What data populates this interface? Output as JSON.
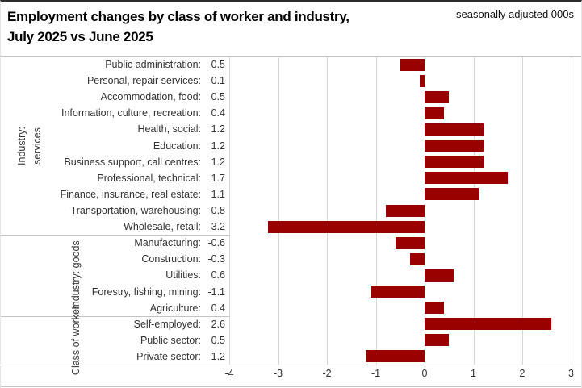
{
  "header": {
    "title_line1": "Employment changes by class of worker and industry,",
    "title_line2": "July 2025 vs June 2025",
    "units_note": "seasonally adjusted 000s"
  },
  "chart_data": {
    "type": "bar",
    "orientation": "horizontal",
    "title": "Employment changes by class of worker and industry, July 2025 vs June 2025",
    "units": "seasonally adjusted 000s",
    "xlim": [
      -4,
      3
    ],
    "x_ticks": [
      -4,
      -3,
      -2,
      -1,
      0,
      1,
      2,
      3
    ],
    "grid": "vertical",
    "legend": "none",
    "bar_color": "#990000",
    "label_format": "{category}: {value}",
    "groups": [
      {
        "label": "Industry: services",
        "categories": [
          "Public administration",
          "Personal, repair services",
          "Accommodation, food",
          "Information, culture, recreation",
          "Health, social",
          "Education",
          "Business support, call centres",
          "Professional, technical",
          "Finance, insurance, real estate",
          "Transportation, warehousing",
          "Wholesale, retail"
        ],
        "values": [
          -0.5,
          -0.1,
          0.5,
          0.4,
          1.2,
          1.2,
          1.2,
          1.7,
          1.1,
          -0.8,
          -3.2
        ]
      },
      {
        "label": "Industry: goods",
        "categories": [
          "Manufacturing",
          "Construction",
          "Utilities",
          "Forestry, fishing, mining",
          "Agriculture"
        ],
        "values": [
          -0.6,
          -0.3,
          0.6,
          -1.1,
          0.4
        ]
      },
      {
        "label": "Class of worker",
        "categories": [
          "Self-employed",
          "Public sector",
          "Private sector"
        ],
        "values": [
          2.6,
          0.5,
          -1.2
        ]
      }
    ]
  },
  "colors": {
    "bar": "#990000",
    "gridline": "#d7d7d7",
    "rule": "#c4c4c4",
    "text": "#333333",
    "title_text": "#000000"
  }
}
